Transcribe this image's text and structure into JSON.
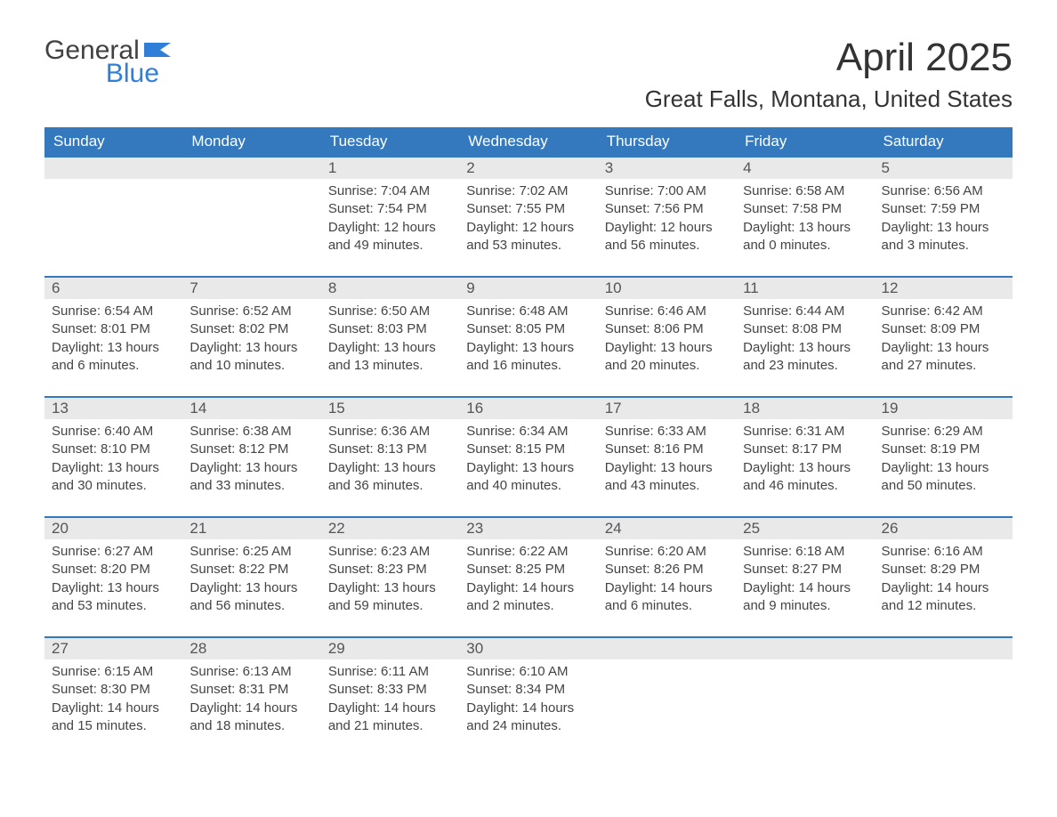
{
  "logo": {
    "general": "General",
    "blue": "Blue",
    "flag_color": "#2f7ed8"
  },
  "title": "April 2025",
  "location": "Great Falls, Montana, United States",
  "colors": {
    "header_bg": "#3478bd",
    "header_text": "#ffffff",
    "daynum_bg": "#e9e9e9",
    "row_border": "#3478bd",
    "body_text": "#444444"
  },
  "columns": [
    "Sunday",
    "Monday",
    "Tuesday",
    "Wednesday",
    "Thursday",
    "Friday",
    "Saturday"
  ],
  "font": {
    "family": "Arial",
    "title_size": 44,
    "location_size": 26,
    "header_size": 17,
    "cell_size": 15
  },
  "weeks": [
    [
      null,
      null,
      {
        "n": "1",
        "sr": "Sunrise: 7:04 AM",
        "ss": "Sunset: 7:54 PM",
        "dl": "Daylight: 12 hours and 49 minutes."
      },
      {
        "n": "2",
        "sr": "Sunrise: 7:02 AM",
        "ss": "Sunset: 7:55 PM",
        "dl": "Daylight: 12 hours and 53 minutes."
      },
      {
        "n": "3",
        "sr": "Sunrise: 7:00 AM",
        "ss": "Sunset: 7:56 PM",
        "dl": "Daylight: 12 hours and 56 minutes."
      },
      {
        "n": "4",
        "sr": "Sunrise: 6:58 AM",
        "ss": "Sunset: 7:58 PM",
        "dl": "Daylight: 13 hours and 0 minutes."
      },
      {
        "n": "5",
        "sr": "Sunrise: 6:56 AM",
        "ss": "Sunset: 7:59 PM",
        "dl": "Daylight: 13 hours and 3 minutes."
      }
    ],
    [
      {
        "n": "6",
        "sr": "Sunrise: 6:54 AM",
        "ss": "Sunset: 8:01 PM",
        "dl": "Daylight: 13 hours and 6 minutes."
      },
      {
        "n": "7",
        "sr": "Sunrise: 6:52 AM",
        "ss": "Sunset: 8:02 PM",
        "dl": "Daylight: 13 hours and 10 minutes."
      },
      {
        "n": "8",
        "sr": "Sunrise: 6:50 AM",
        "ss": "Sunset: 8:03 PM",
        "dl": "Daylight: 13 hours and 13 minutes."
      },
      {
        "n": "9",
        "sr": "Sunrise: 6:48 AM",
        "ss": "Sunset: 8:05 PM",
        "dl": "Daylight: 13 hours and 16 minutes."
      },
      {
        "n": "10",
        "sr": "Sunrise: 6:46 AM",
        "ss": "Sunset: 8:06 PM",
        "dl": "Daylight: 13 hours and 20 minutes."
      },
      {
        "n": "11",
        "sr": "Sunrise: 6:44 AM",
        "ss": "Sunset: 8:08 PM",
        "dl": "Daylight: 13 hours and 23 minutes."
      },
      {
        "n": "12",
        "sr": "Sunrise: 6:42 AM",
        "ss": "Sunset: 8:09 PM",
        "dl": "Daylight: 13 hours and 27 minutes."
      }
    ],
    [
      {
        "n": "13",
        "sr": "Sunrise: 6:40 AM",
        "ss": "Sunset: 8:10 PM",
        "dl": "Daylight: 13 hours and 30 minutes."
      },
      {
        "n": "14",
        "sr": "Sunrise: 6:38 AM",
        "ss": "Sunset: 8:12 PM",
        "dl": "Daylight: 13 hours and 33 minutes."
      },
      {
        "n": "15",
        "sr": "Sunrise: 6:36 AM",
        "ss": "Sunset: 8:13 PM",
        "dl": "Daylight: 13 hours and 36 minutes."
      },
      {
        "n": "16",
        "sr": "Sunrise: 6:34 AM",
        "ss": "Sunset: 8:15 PM",
        "dl": "Daylight: 13 hours and 40 minutes."
      },
      {
        "n": "17",
        "sr": "Sunrise: 6:33 AM",
        "ss": "Sunset: 8:16 PM",
        "dl": "Daylight: 13 hours and 43 minutes."
      },
      {
        "n": "18",
        "sr": "Sunrise: 6:31 AM",
        "ss": "Sunset: 8:17 PM",
        "dl": "Daylight: 13 hours and 46 minutes."
      },
      {
        "n": "19",
        "sr": "Sunrise: 6:29 AM",
        "ss": "Sunset: 8:19 PM",
        "dl": "Daylight: 13 hours and 50 minutes."
      }
    ],
    [
      {
        "n": "20",
        "sr": "Sunrise: 6:27 AM",
        "ss": "Sunset: 8:20 PM",
        "dl": "Daylight: 13 hours and 53 minutes."
      },
      {
        "n": "21",
        "sr": "Sunrise: 6:25 AM",
        "ss": "Sunset: 8:22 PM",
        "dl": "Daylight: 13 hours and 56 minutes."
      },
      {
        "n": "22",
        "sr": "Sunrise: 6:23 AM",
        "ss": "Sunset: 8:23 PM",
        "dl": "Daylight: 13 hours and 59 minutes."
      },
      {
        "n": "23",
        "sr": "Sunrise: 6:22 AM",
        "ss": "Sunset: 8:25 PM",
        "dl": "Daylight: 14 hours and 2 minutes."
      },
      {
        "n": "24",
        "sr": "Sunrise: 6:20 AM",
        "ss": "Sunset: 8:26 PM",
        "dl": "Daylight: 14 hours and 6 minutes."
      },
      {
        "n": "25",
        "sr": "Sunrise: 6:18 AM",
        "ss": "Sunset: 8:27 PM",
        "dl": "Daylight: 14 hours and 9 minutes."
      },
      {
        "n": "26",
        "sr": "Sunrise: 6:16 AM",
        "ss": "Sunset: 8:29 PM",
        "dl": "Daylight: 14 hours and 12 minutes."
      }
    ],
    [
      {
        "n": "27",
        "sr": "Sunrise: 6:15 AM",
        "ss": "Sunset: 8:30 PM",
        "dl": "Daylight: 14 hours and 15 minutes."
      },
      {
        "n": "28",
        "sr": "Sunrise: 6:13 AM",
        "ss": "Sunset: 8:31 PM",
        "dl": "Daylight: 14 hours and 18 minutes."
      },
      {
        "n": "29",
        "sr": "Sunrise: 6:11 AM",
        "ss": "Sunset: 8:33 PM",
        "dl": "Daylight: 14 hours and 21 minutes."
      },
      {
        "n": "30",
        "sr": "Sunrise: 6:10 AM",
        "ss": "Sunset: 8:34 PM",
        "dl": "Daylight: 14 hours and 24 minutes."
      },
      null,
      null,
      null
    ]
  ]
}
